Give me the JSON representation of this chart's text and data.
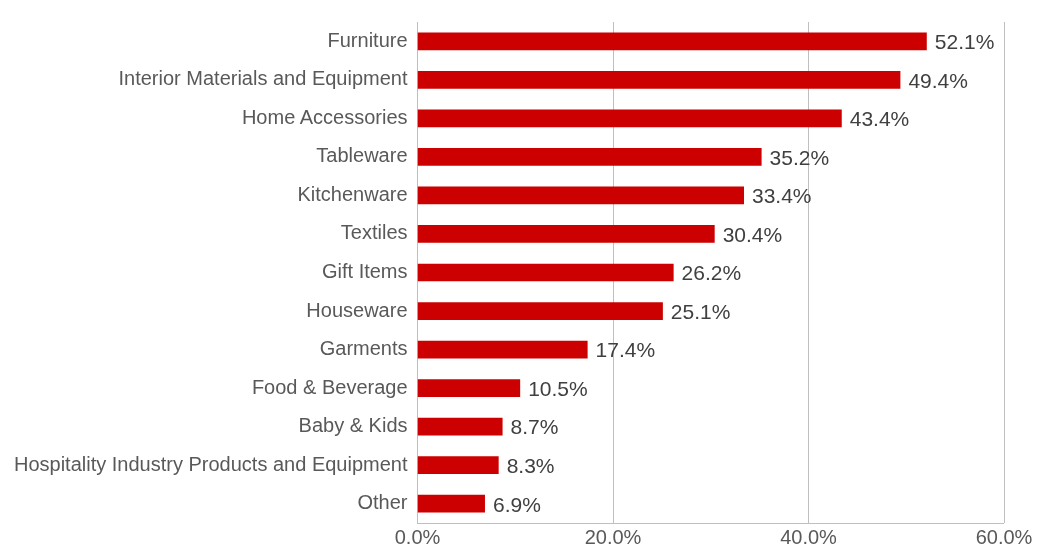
{
  "chart_data": {
    "type": "bar",
    "orientation": "horizontal",
    "categories": [
      "Furniture",
      "Interior Materials and Equipment",
      "Home Accessories",
      "Tableware",
      "Kitchenware",
      "Textiles",
      "Gift Items",
      "Houseware",
      "Garments",
      "Food & Beverage",
      "Baby & Kids",
      "Hospitality Industry Products and Equipment",
      "Other"
    ],
    "values": [
      52.1,
      49.4,
      43.4,
      35.2,
      33.4,
      30.4,
      26.2,
      25.1,
      17.4,
      10.5,
      8.7,
      8.3,
      6.9
    ],
    "value_labels": [
      "52.1%",
      "49.4%",
      "43.4%",
      "35.2%",
      "33.4%",
      "30.4%",
      "26.2%",
      "25.1%",
      "17.4%",
      "10.5%",
      "8.7%",
      "8.3%",
      "6.9%"
    ],
    "color": "#cc0000",
    "xlim": [
      0,
      60
    ],
    "xticks": [
      {
        "value": 0,
        "label": "0.0%"
      },
      {
        "value": 20,
        "label": "20.0%"
      },
      {
        "value": 40,
        "label": "40.0%"
      },
      {
        "value": 60,
        "label": "60.0%"
      }
    ],
    "grid": "x"
  }
}
